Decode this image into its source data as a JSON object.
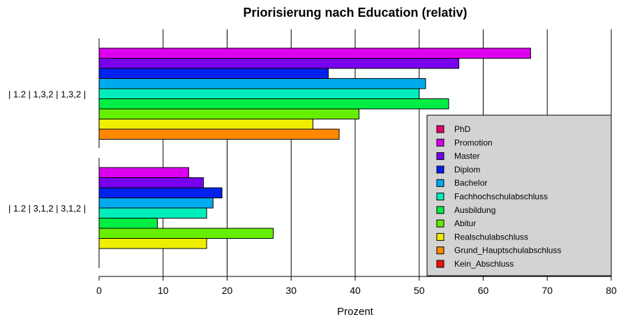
{
  "chart_data": {
    "type": "bar",
    "orientation": "horizontal",
    "title": "Priorisierung nach Education (relativ)",
    "xlabel": "Prozent",
    "ylabel": "",
    "xlim": [
      0,
      80
    ],
    "x_ticks": [
      0,
      10,
      20,
      30,
      40,
      50,
      60,
      70,
      80
    ],
    "grid": "vertical",
    "legend_position": "right",
    "categories": [
      "| 1.2 | 1,3,2 | 1,3,2 |",
      "| 1.2 | 3,1,2 | 3,1,2 |"
    ],
    "series": [
      {
        "name": "PhD",
        "color": "#e8006e",
        "values": [
          null,
          null
        ]
      },
      {
        "name": "Promotion",
        "color": "#dd00ee",
        "values": [
          67.4,
          14.0
        ]
      },
      {
        "name": "Master",
        "color": "#7700ee",
        "values": [
          56.2,
          16.3
        ]
      },
      {
        "name": "Diplom",
        "color": "#0022ee",
        "values": [
          35.8,
          19.2
        ]
      },
      {
        "name": "Bachelor",
        "color": "#00aaee",
        "values": [
          51.0,
          17.8
        ]
      },
      {
        "name": "Fachhochschulabschluss",
        "color": "#00eebb",
        "values": [
          50.0,
          16.8
        ]
      },
      {
        "name": "Ausbildung",
        "color": "#00ee44",
        "values": [
          54.6,
          9.1
        ]
      },
      {
        "name": "Abitur",
        "color": "#66ee00",
        "values": [
          40.6,
          27.2
        ]
      },
      {
        "name": "Realschulabschluss",
        "color": "#eeee00",
        "values": [
          33.4,
          16.8
        ]
      },
      {
        "name": "Grund_Hauptschulabschluss",
        "color": "#ff8800",
        "values": [
          37.5,
          null
        ]
      },
      {
        "name": "Kein_Abschluss",
        "color": "#ee1111",
        "values": [
          null,
          null
        ]
      }
    ]
  }
}
